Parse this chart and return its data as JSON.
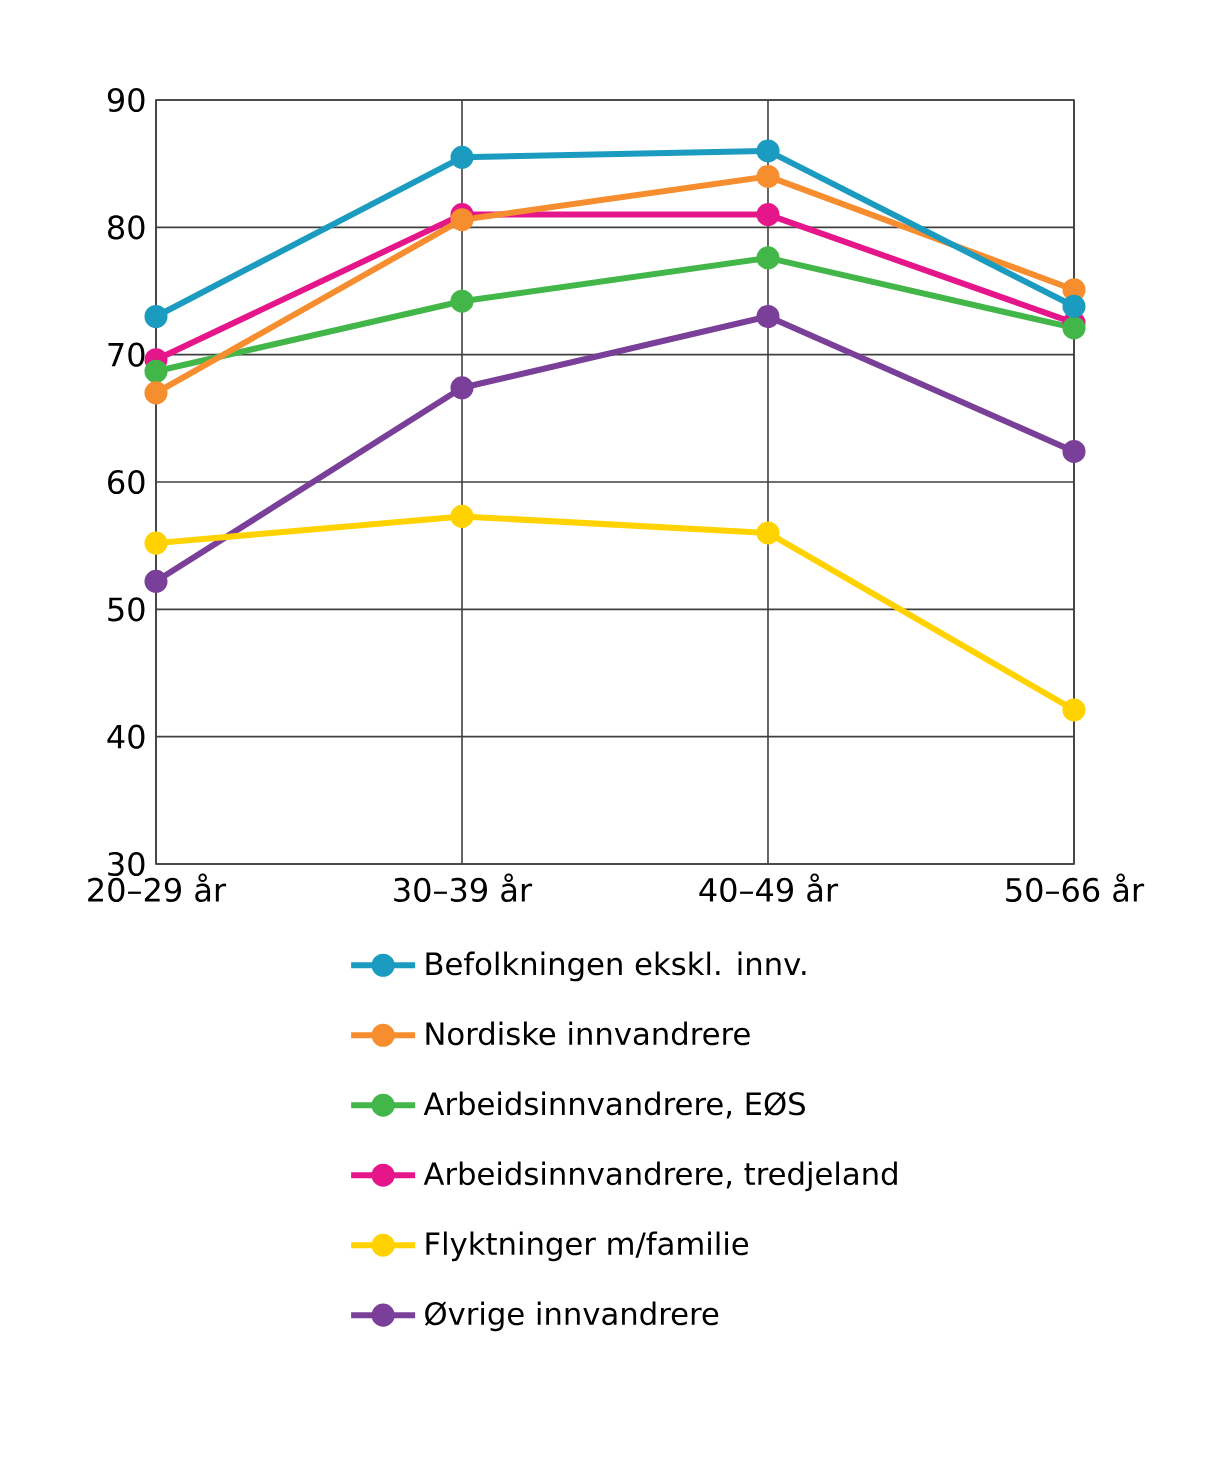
{
  "chart_data": {
    "type": "line",
    "categories": [
      "20–29 år",
      "30–39 år",
      "40–49 år",
      "50–66 år"
    ],
    "series": [
      {
        "name": "Befolkningen ekskl. innv.",
        "color": "#1a9bbf",
        "values": [
          73.0,
          85.5,
          86.0,
          73.8
        ]
      },
      {
        "name": "Nordiske innvandrere",
        "color": "#f68d2e",
        "values": [
          67.0,
          80.6,
          84.0,
          75.1
        ]
      },
      {
        "name": "Arbeidsinnvandrere, EØS",
        "color": "#43b649",
        "values": [
          68.7,
          74.2,
          77.6,
          72.1
        ]
      },
      {
        "name": "Arbeidsinnvandrere, tredjeland",
        "color": "#e5158a",
        "values": [
          69.6,
          81.0,
          81.0,
          72.5
        ]
      },
      {
        "name": "Flyktninger m/familie",
        "color": "#ffd200",
        "values": [
          55.2,
          57.3,
          56.0,
          42.1
        ]
      },
      {
        "name": "Øvrige innvandrere",
        "color": "#7a3f98",
        "values": [
          52.2,
          67.4,
          73.0,
          62.4
        ]
      }
    ],
    "ylim": [
      30,
      90
    ],
    "yticks": [
      30,
      40,
      50,
      60,
      70,
      80,
      90
    ],
    "grid": true,
    "legend": "bottom",
    "marker": "circle",
    "line_style": "solid"
  }
}
